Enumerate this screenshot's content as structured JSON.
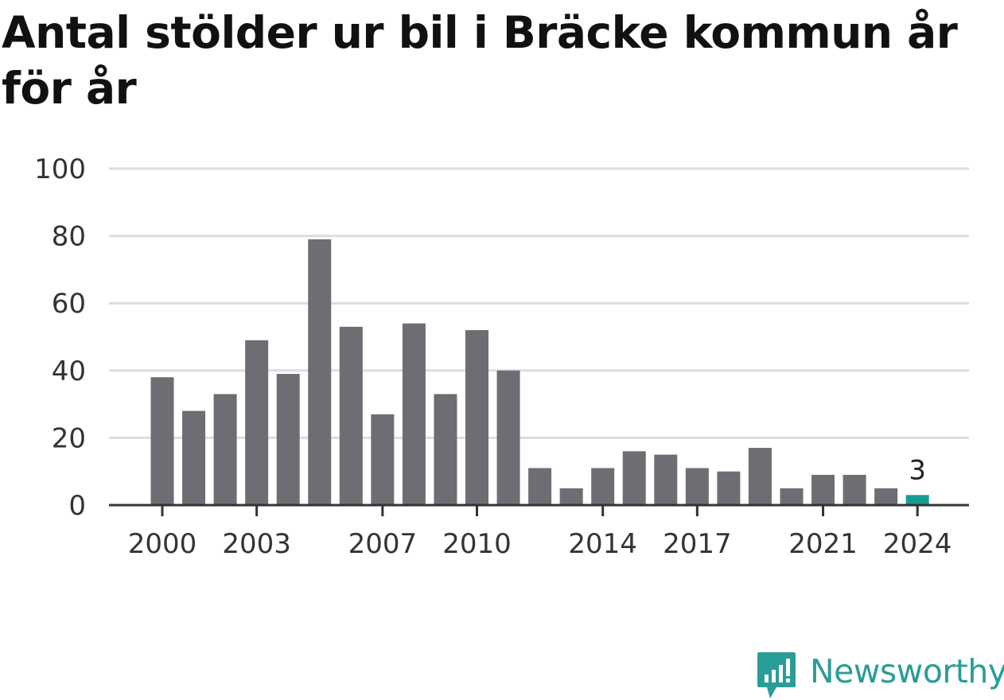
{
  "title": "Antal stölder ur bil i Bräcke kommun år för år",
  "brand": {
    "name": "Newsworthy",
    "color": "#2a9d98",
    "icon": "newsworthy-logo-icon"
  },
  "chart_data": {
    "type": "bar",
    "title": "Antal stölder ur bil i Bräcke kommun år för år",
    "xlabel": "",
    "ylabel": "",
    "categories": [
      2000,
      2001,
      2002,
      2003,
      2004,
      2005,
      2006,
      2007,
      2008,
      2009,
      2010,
      2011,
      2012,
      2013,
      2014,
      2015,
      2016,
      2017,
      2018,
      2019,
      2020,
      2021,
      2022,
      2023,
      2024
    ],
    "values": [
      38,
      28,
      33,
      49,
      39,
      79,
      53,
      27,
      54,
      33,
      52,
      40,
      11,
      5,
      11,
      16,
      15,
      11,
      10,
      17,
      5,
      9,
      9,
      5,
      3
    ],
    "x_tick_labels": [
      "2000",
      "2003",
      "2007",
      "2010",
      "2014",
      "2017",
      "2021",
      "2024"
    ],
    "y_ticks": [
      "0",
      "20",
      "40",
      "60",
      "80",
      "100"
    ],
    "ylim": [
      0,
      100
    ],
    "grid": true,
    "bar_color": "#6e6d73",
    "highlight_color": "#1a9c95",
    "highlight_category": 2024,
    "data_labels": [
      {
        "category": 2024,
        "text": "3"
      }
    ]
  }
}
